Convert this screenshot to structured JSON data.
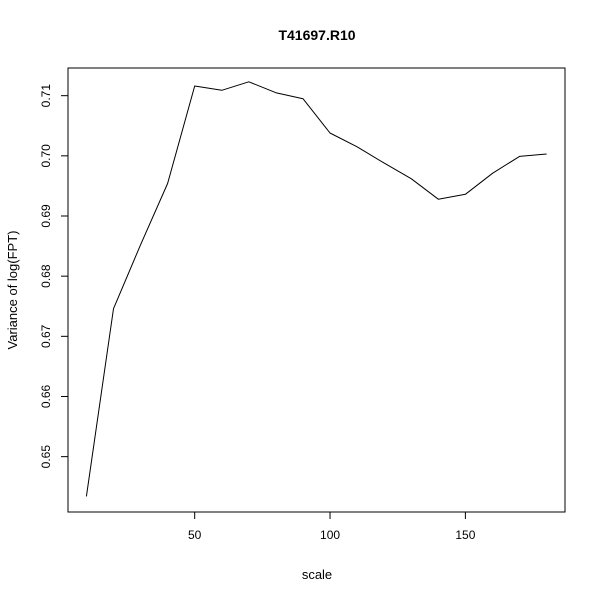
{
  "chart_data": {
    "type": "line",
    "title": "T41697.R10",
    "xlabel": "scale",
    "ylabel": "Variance of log(FPT)",
    "xlim": [
      3.2,
      186.8
    ],
    "ylim": [
      0.6408,
      0.7146
    ],
    "x_ticks": [
      50,
      100,
      150
    ],
    "y_ticks": [
      0.65,
      0.66,
      0.67,
      0.68,
      0.69,
      0.7,
      0.71
    ],
    "x_tick_labels": [
      "50",
      "100",
      "150"
    ],
    "y_tick_labels": [
      "0.65",
      "0.66",
      "0.67",
      "0.68",
      "0.69",
      "0.70",
      "0.71"
    ],
    "grid": false,
    "series": [
      {
        "x": [
          10,
          20,
          30,
          40,
          50,
          60,
          70,
          80,
          90,
          100,
          110,
          120,
          130,
          140,
          150,
          160,
          170,
          180
        ],
        "y": [
          0.6434,
          0.6746,
          0.6852,
          0.6954,
          0.7116,
          0.7109,
          0.7123,
          0.7105,
          0.7095,
          0.7038,
          0.7015,
          0.6988,
          0.6962,
          0.6928,
          0.6936,
          0.6971,
          0.6999,
          0.7003
        ],
        "color": "#000000"
      }
    ]
  }
}
